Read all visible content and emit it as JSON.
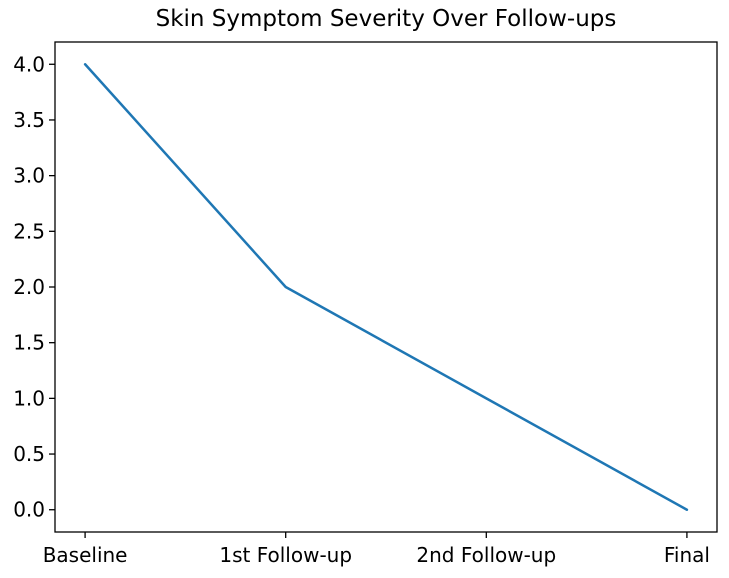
{
  "title": "Skin Symptom Severity Over Follow-ups",
  "chart_data": {
    "type": "line",
    "categories": [
      "Baseline",
      "1st Follow-up",
      "2nd Follow-up",
      "Final"
    ],
    "values": [
      4.0,
      2.0,
      1.0,
      0.0
    ],
    "title": "Skin Symptom Severity Over Follow-ups",
    "xlabel": "",
    "ylabel": "",
    "yticks": [
      0.0,
      0.5,
      1.0,
      1.5,
      2.0,
      2.5,
      3.0,
      3.5,
      4.0
    ],
    "ytick_labels": [
      "0.0",
      "0.5",
      "1.0",
      "1.5",
      "2.0",
      "2.5",
      "3.0",
      "3.5",
      "4.0"
    ],
    "ylim": [
      -0.2,
      4.2
    ],
    "xlim": [
      -0.15,
      3.15
    ],
    "grid": false,
    "legend_position": "none",
    "line_color": "#1f77b4",
    "line_width": 2.5,
    "frame_color": "#000000",
    "background_color": "#ffffff"
  }
}
